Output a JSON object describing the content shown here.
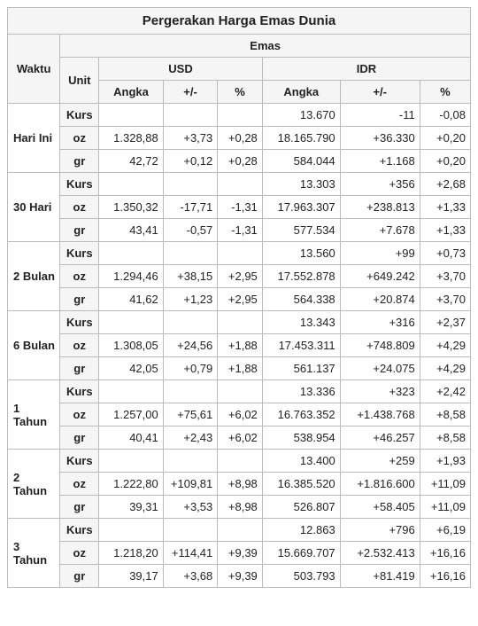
{
  "title": "Pergerakan Harga Emas Dunia",
  "headers": {
    "waktu": "Waktu",
    "emas": "Emas",
    "unit": "Unit",
    "usd": "USD",
    "idr": "IDR",
    "angka": "Angka",
    "delta": "+/-",
    "pct": "%"
  },
  "unit_labels": {
    "kurs": "Kurs",
    "oz": "oz",
    "gr": "gr"
  },
  "periods": [
    {
      "label": "Hari Ini",
      "rows": [
        {
          "unit": "Kurs",
          "usd_angka": "",
          "usd_delta": "",
          "usd_pct": "",
          "idr_angka": "13.670",
          "idr_delta": "-11",
          "idr_pct": "-0,08"
        },
        {
          "unit": "oz",
          "usd_angka": "1.328,88",
          "usd_delta": "+3,73",
          "usd_pct": "+0,28",
          "idr_angka": "18.165.790",
          "idr_delta": "+36.330",
          "idr_pct": "+0,20"
        },
        {
          "unit": "gr",
          "usd_angka": "42,72",
          "usd_delta": "+0,12",
          "usd_pct": "+0,28",
          "idr_angka": "584.044",
          "idr_delta": "+1.168",
          "idr_pct": "+0,20"
        }
      ]
    },
    {
      "label": "30 Hari",
      "rows": [
        {
          "unit": "Kurs",
          "usd_angka": "",
          "usd_delta": "",
          "usd_pct": "",
          "idr_angka": "13.303",
          "idr_delta": "+356",
          "idr_pct": "+2,68"
        },
        {
          "unit": "oz",
          "usd_angka": "1.350,32",
          "usd_delta": "-17,71",
          "usd_pct": "-1,31",
          "idr_angka": "17.963.307",
          "idr_delta": "+238.813",
          "idr_pct": "+1,33"
        },
        {
          "unit": "gr",
          "usd_angka": "43,41",
          "usd_delta": "-0,57",
          "usd_pct": "-1,31",
          "idr_angka": "577.534",
          "idr_delta": "+7.678",
          "idr_pct": "+1,33"
        }
      ]
    },
    {
      "label": "2 Bulan",
      "rows": [
        {
          "unit": "Kurs",
          "usd_angka": "",
          "usd_delta": "",
          "usd_pct": "",
          "idr_angka": "13.560",
          "idr_delta": "+99",
          "idr_pct": "+0,73"
        },
        {
          "unit": "oz",
          "usd_angka": "1.294,46",
          "usd_delta": "+38,15",
          "usd_pct": "+2,95",
          "idr_angka": "17.552.878",
          "idr_delta": "+649.242",
          "idr_pct": "+3,70"
        },
        {
          "unit": "gr",
          "usd_angka": "41,62",
          "usd_delta": "+1,23",
          "usd_pct": "+2,95",
          "idr_angka": "564.338",
          "idr_delta": "+20.874",
          "idr_pct": "+3,70"
        }
      ]
    },
    {
      "label": "6 Bulan",
      "rows": [
        {
          "unit": "Kurs",
          "usd_angka": "",
          "usd_delta": "",
          "usd_pct": "",
          "idr_angka": "13.343",
          "idr_delta": "+316",
          "idr_pct": "+2,37"
        },
        {
          "unit": "oz",
          "usd_angka": "1.308,05",
          "usd_delta": "+24,56",
          "usd_pct": "+1,88",
          "idr_angka": "17.453.311",
          "idr_delta": "+748.809",
          "idr_pct": "+4,29"
        },
        {
          "unit": "gr",
          "usd_angka": "42,05",
          "usd_delta": "+0,79",
          "usd_pct": "+1,88",
          "idr_angka": "561.137",
          "idr_delta": "+24.075",
          "idr_pct": "+4,29"
        }
      ]
    },
    {
      "label": "1 Tahun",
      "rows": [
        {
          "unit": "Kurs",
          "usd_angka": "",
          "usd_delta": "",
          "usd_pct": "",
          "idr_angka": "13.336",
          "idr_delta": "+323",
          "idr_pct": "+2,42"
        },
        {
          "unit": "oz",
          "usd_angka": "1.257,00",
          "usd_delta": "+75,61",
          "usd_pct": "+6,02",
          "idr_angka": "16.763.352",
          "idr_delta": "+1.438.768",
          "idr_pct": "+8,58"
        },
        {
          "unit": "gr",
          "usd_angka": "40,41",
          "usd_delta": "+2,43",
          "usd_pct": "+6,02",
          "idr_angka": "538.954",
          "idr_delta": "+46.257",
          "idr_pct": "+8,58"
        }
      ]
    },
    {
      "label": "2 Tahun",
      "rows": [
        {
          "unit": "Kurs",
          "usd_angka": "",
          "usd_delta": "",
          "usd_pct": "",
          "idr_angka": "13.400",
          "idr_delta": "+259",
          "idr_pct": "+1,93"
        },
        {
          "unit": "oz",
          "usd_angka": "1.222,80",
          "usd_delta": "+109,81",
          "usd_pct": "+8,98",
          "idr_angka": "16.385.520",
          "idr_delta": "+1.816.600",
          "idr_pct": "+11,09"
        },
        {
          "unit": "gr",
          "usd_angka": "39,31",
          "usd_delta": "+3,53",
          "usd_pct": "+8,98",
          "idr_angka": "526.807",
          "idr_delta": "+58.405",
          "idr_pct": "+11,09"
        }
      ]
    },
    {
      "label": "3 Tahun",
      "rows": [
        {
          "unit": "Kurs",
          "usd_angka": "",
          "usd_delta": "",
          "usd_pct": "",
          "idr_angka": "12.863",
          "idr_delta": "+796",
          "idr_pct": "+6,19"
        },
        {
          "unit": "oz",
          "usd_angka": "1.218,20",
          "usd_delta": "+114,41",
          "usd_pct": "+9,39",
          "idr_angka": "15.669.707",
          "idr_delta": "+2.532.413",
          "idr_pct": "+16,16"
        },
        {
          "unit": "gr",
          "usd_angka": "39,17",
          "usd_delta": "+3,68",
          "usd_pct": "+9,39",
          "idr_angka": "503.793",
          "idr_delta": "+81.419",
          "idr_pct": "+16,16"
        }
      ]
    }
  ]
}
